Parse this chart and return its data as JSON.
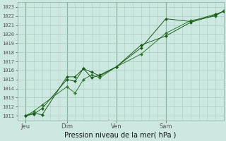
{
  "background_color": "#cde8e0",
  "grid_color": "#aaccc0",
  "vline_color": "#5a9a7a",
  "line_colors": [
    "#1a5c1a",
    "#2d7a2d",
    "#1a5c1a"
  ],
  "xlabel": "Pression niveau de la mer( hPa )",
  "yticks": [
    1011,
    1012,
    1013,
    1014,
    1015,
    1016,
    1017,
    1018,
    1019,
    1020,
    1021,
    1022,
    1023
  ],
  "xtick_labels": [
    "Jeu",
    "Dim",
    "Ven",
    "Sam"
  ],
  "xtick_positions": [
    0.5,
    3.0,
    6.0,
    9.0
  ],
  "vline_positions": [
    0.5,
    3.0,
    6.0,
    9.0
  ],
  "xlim": [
    0.0,
    12.5
  ],
  "ylim": [
    1010.5,
    1023.5
  ],
  "series_x": [
    [
      0.5,
      1.0,
      1.5,
      3.0,
      3.5,
      4.0,
      4.5,
      5.0,
      6.0,
      7.5,
      9.0,
      10.5,
      12.0,
      12.5
    ],
    [
      0.5,
      1.0,
      1.5,
      3.0,
      3.5,
      4.0,
      4.5,
      5.0,
      6.0,
      7.5,
      9.0,
      10.5,
      12.0,
      12.5
    ],
    [
      0.5,
      1.0,
      1.5,
      3.0,
      3.5,
      4.0,
      4.5,
      5.0,
      6.0,
      7.5,
      9.0,
      10.5,
      12.0,
      12.5
    ]
  ],
  "series_y": [
    [
      1011.0,
      1011.3,
      1011.1,
      1015.3,
      1015.3,
      1016.2,
      1015.8,
      1015.4,
      1016.4,
      1018.5,
      1021.7,
      1021.4,
      1022.2,
      1022.5
    ],
    [
      1011.0,
      1011.5,
      1012.2,
      1014.2,
      1013.5,
      1015.0,
      1015.5,
      1015.2,
      1016.4,
      1017.8,
      1020.1,
      1021.5,
      1022.0,
      1022.6
    ],
    [
      1011.0,
      1011.2,
      1011.8,
      1015.0,
      1014.8,
      1016.2,
      1015.2,
      1015.5,
      1016.4,
      1018.8,
      1019.8,
      1021.3,
      1022.1,
      1022.5
    ]
  ]
}
